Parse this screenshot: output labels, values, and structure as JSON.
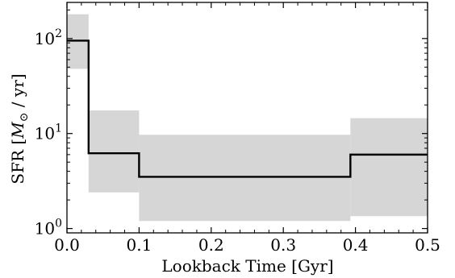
{
  "chart_data": {
    "type": "line",
    "title": "",
    "xlabel": "Lookback Time [Gyr]",
    "ylabel": "SFR [M⊙ / yr]",
    "ylabel_parts": {
      "prefix": "SFR [",
      "symbol": "M",
      "subscript": "⊙",
      "suffix": " / yr]"
    },
    "xlim": [
      0.0,
      0.5
    ],
    "ylim": [
      0.9,
      240
    ],
    "yscale": "log",
    "grid": false,
    "x_ticks": [
      {
        "value": 0.0,
        "label": "0.0"
      },
      {
        "value": 0.1,
        "label": "0.1"
      },
      {
        "value": 0.2,
        "label": "0.2"
      },
      {
        "value": 0.3,
        "label": "0.3"
      },
      {
        "value": 0.4,
        "label": "0.4"
      },
      {
        "value": 0.5,
        "label": "0.5"
      }
    ],
    "y_ticks": [
      {
        "value": 1,
        "base": "10",
        "exp": "0"
      },
      {
        "value": 10,
        "base": "10",
        "exp": "1"
      },
      {
        "value": 100,
        "base": "10",
        "exp": "2"
      }
    ],
    "bin_edges": [
      0.0,
      0.03,
      0.1,
      0.393,
      0.5
    ],
    "sfr_median": [
      95,
      6.2,
      3.5,
      6.0
    ],
    "sfr_lower": [
      48,
      2.4,
      1.2,
      1.35
    ],
    "sfr_upper": [
      180,
      17.5,
      9.7,
      14.5
    ],
    "colors": {
      "band": "#d6d6d6",
      "line": "#000000"
    }
  }
}
